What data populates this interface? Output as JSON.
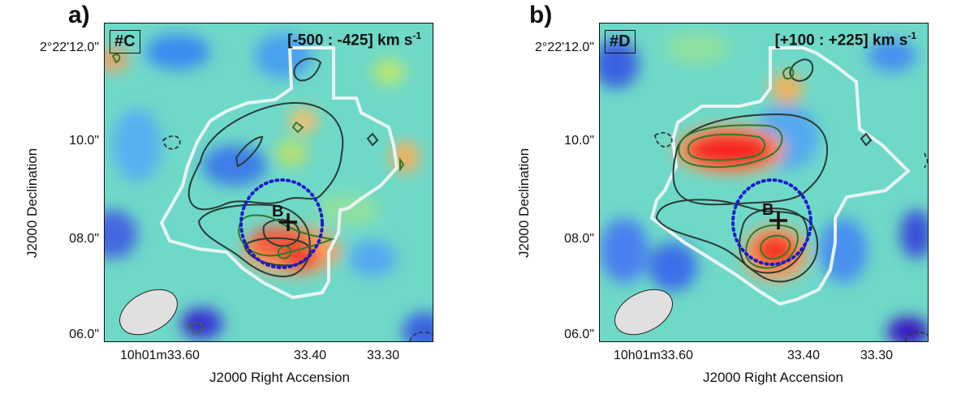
{
  "panels": [
    {
      "letter": "a)",
      "id_label": "#C",
      "velocity_range": "[-500 : -425] km s",
      "velocity_unit_exp": "-1",
      "y_ticks": [
        "2°22'12.0\"",
        "10.0\"",
        "08.0\"",
        "06.0\""
      ],
      "x_ticks": [
        "10h01m33.60",
        "33.40",
        "33.30"
      ],
      "x_label": "J2000 Right Accension",
      "y_label": "J2000 Declination",
      "marker_label": "B"
    },
    {
      "letter": "b)",
      "id_label": "#D",
      "velocity_range": "[+100 : +225] km s",
      "velocity_unit_exp": "-1",
      "y_ticks": [
        "2°22'12.0\"",
        "10.0\"",
        "08.0\"",
        "06.0\""
      ],
      "x_ticks": [
        "10h01m33.60",
        "33.40",
        "33.30"
      ],
      "x_label": "J2000 Right Accension",
      "y_label": "J2000 Declination",
      "marker_label": "B"
    }
  ],
  "colors": {
    "map_base": "#6fd9c8",
    "white_contour": "#e8f4f4",
    "dark_contour": "#2b3a36",
    "green_contour": "#2f7a2a",
    "ellipse": "#1a1acc",
    "beam": "#e0e0e0"
  }
}
